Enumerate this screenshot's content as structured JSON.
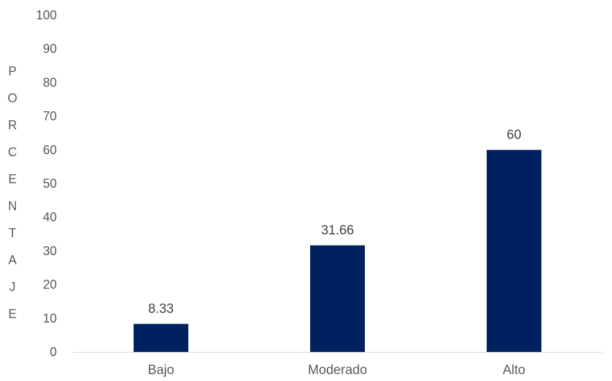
{
  "chart_data": {
    "type": "bar",
    "categories": [
      "Bajo",
      "Moderado",
      "Alto"
    ],
    "values": [
      8.33,
      31.66,
      60
    ],
    "data_labels": [
      "8.33",
      "31.66",
      "60"
    ],
    "title": "",
    "xlabel": "",
    "ylabel": "PORCENTAJE",
    "ylim": [
      0,
      100
    ],
    "yticks": [
      0,
      10,
      20,
      30,
      40,
      50,
      60,
      70,
      80,
      90,
      100
    ],
    "grid": false,
    "legend": "none",
    "bar_color": "#002060",
    "axis_color": "#d9d9d9",
    "text_color": "#595959"
  }
}
